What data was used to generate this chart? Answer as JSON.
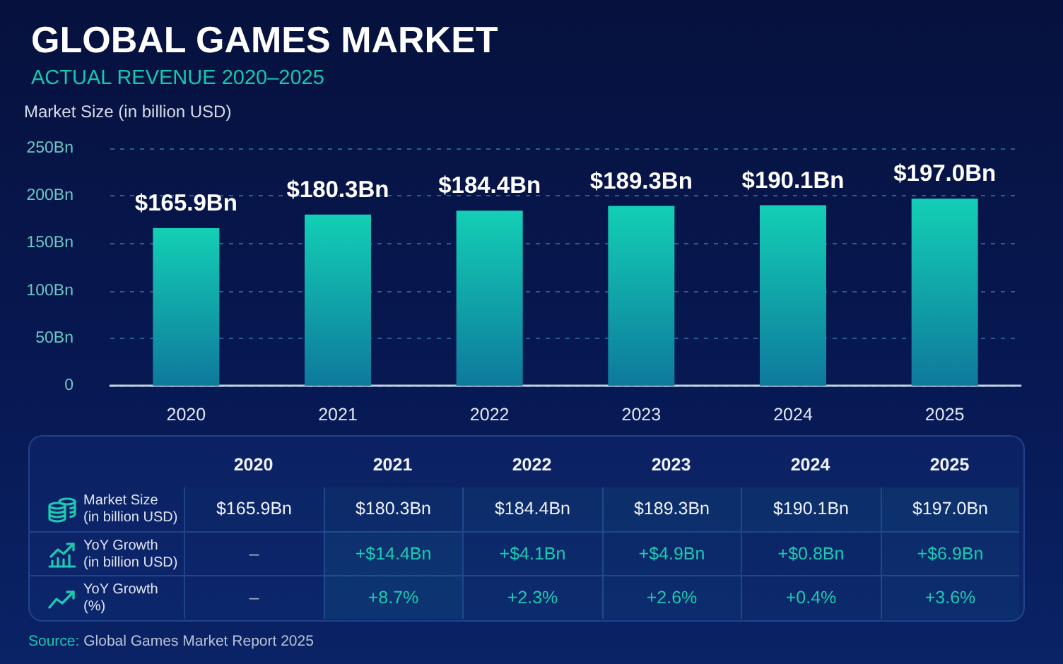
{
  "chart_data": [
    {
      "type": "bar",
      "title": "GLOBAL GAMES MARKET",
      "subtitle": "ACTUAL REVENUE 2020–2025",
      "ylabel": "Market Size (in billion USD)",
      "categories": [
        "2020",
        "2021",
        "2022",
        "2023",
        "2024",
        "2025"
      ],
      "values": [
        165.9,
        180.3,
        184.4,
        189.3,
        190.1,
        197.0
      ],
      "value_labels": [
        "$165.9Bn",
        "$180.3Bn",
        "$184.4Bn",
        "$189.3Bn",
        "$190.1Bn",
        "$197.0Bn"
      ],
      "color": "#13cfb5",
      "ylim": [
        0,
        250
      ],
      "yticks": [
        0,
        {
          "value": 50,
          "label": "50Bn"
        },
        {
          "value": 100,
          "label": "100Bn"
        },
        {
          "value": 150,
          "label": "150Bn"
        },
        {
          "value": 200,
          "label": "200Bn"
        },
        {
          "value": 250,
          "label": "250Bn"
        }
      ],
      "grid": "y"
    },
    {
      "type": "heatmap",
      "categories": [
        "2020",
        "2021",
        "2022",
        "2023",
        "2024",
        "2025"
      ],
      "y_categories": [
        "Market Size\n(in billion USD)",
        "YoY Growth\n(in billion USD)",
        "YoY Growth\n(%)"
      ],
      "cells": [
        [
          165.9,
          180.3,
          184.4,
          189.3,
          190.1,
          197.0
        ],
        [
          null,
          14.4,
          4.1,
          4.9,
          0.8,
          6.9
        ],
        [
          null,
          8.7,
          2.3,
          2.6,
          0.4,
          3.6
        ]
      ],
      "cell_labels": [
        [
          "$165.9Bn",
          "$180.3Bn",
          "$184.4Bn",
          "$189.3Bn",
          "$190.1Bn",
          "$197.0Bn"
        ],
        [
          "–",
          "+$14.4Bn",
          "+$4.1Bn",
          "+$4.9Bn",
          "+$0.8Bn",
          "+$6.9Bn"
        ],
        [
          "–",
          "+8.7%",
          "+2.3%",
          "+2.6%",
          "+0.4%",
          "+3.6%"
        ]
      ],
      "annotations": [
        "Source: Global Games Market Report 2025"
      ]
    }
  ]
}
